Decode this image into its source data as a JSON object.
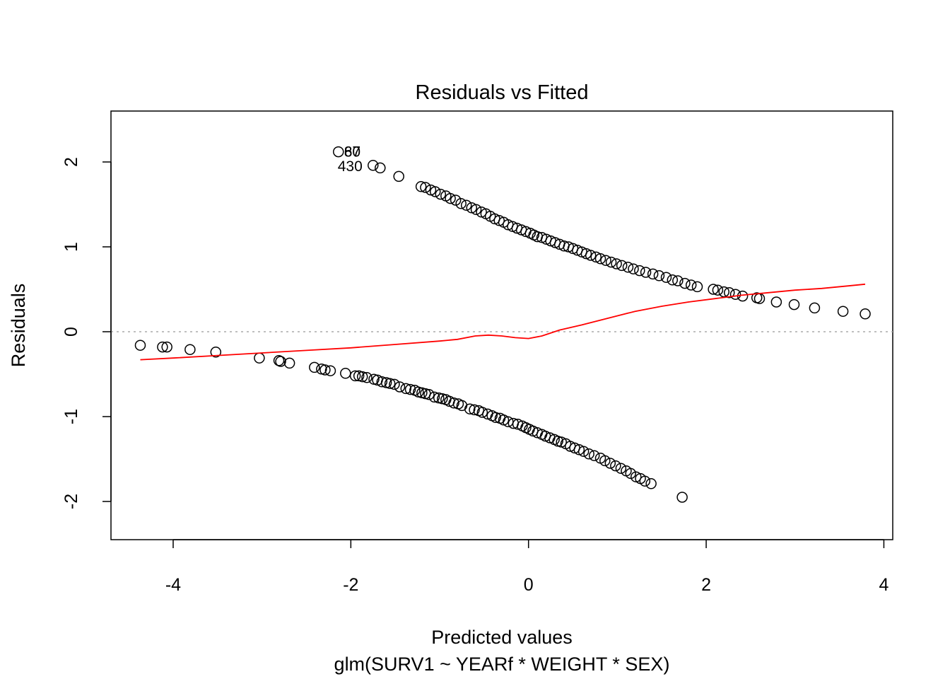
{
  "chart_data": {
    "type": "scatter",
    "title": "Residuals vs Fitted",
    "xlabel": "Predicted values",
    "subtitle": "glm(SURV1 ~ YEARf * WEIGHT * SEX)",
    "ylabel": "Residuals",
    "xlim": [
      -4.7,
      4.1
    ],
    "ylim": [
      -2.45,
      2.6
    ],
    "x_ticks": [
      -4,
      -2,
      0,
      2,
      4
    ],
    "x_tick_labels": [
      "-4",
      "-2",
      "0",
      "2",
      "4"
    ],
    "y_ticks": [
      -2,
      -1,
      0,
      1,
      2
    ],
    "y_tick_labels": [
      "-2",
      "-1",
      "0",
      "1",
      "2"
    ],
    "reference_line_y": 0,
    "grid": false,
    "colors": {
      "points": "#000000",
      "smoother": "#ff0000",
      "reference": "#aaaaaa"
    },
    "point_labels": [
      {
        "text": "87",
        "x": -2.14,
        "y": 2.12
      },
      {
        "text": "60",
        "x": -2.14,
        "y": 2.12
      },
      {
        "text": "430",
        "x": -1.75,
        "y": 1.96
      }
    ],
    "series": [
      {
        "name": "",
        "points": [
          [
            -4.37,
            -0.16
          ],
          [
            -4.12,
            -0.18
          ],
          [
            -4.07,
            -0.18
          ],
          [
            -3.81,
            -0.21
          ],
          [
            -3.52,
            -0.24
          ],
          [
            -3.03,
            -0.31
          ],
          [
            -2.81,
            -0.34
          ],
          [
            -2.79,
            -0.35
          ],
          [
            -2.69,
            -0.37
          ],
          [
            -2.41,
            -0.42
          ],
          [
            -2.33,
            -0.44
          ],
          [
            -2.29,
            -0.45
          ],
          [
            -2.23,
            -0.46
          ],
          [
            -2.06,
            -0.49
          ],
          [
            -1.95,
            -0.52
          ],
          [
            -1.91,
            -0.52
          ],
          [
            -1.87,
            -0.53
          ],
          [
            -1.82,
            -0.54
          ],
          [
            -1.74,
            -0.56
          ],
          [
            -1.7,
            -0.57
          ],
          [
            -1.65,
            -0.59
          ],
          [
            -1.6,
            -0.6
          ],
          [
            -1.56,
            -0.61
          ],
          [
            -1.51,
            -0.62
          ],
          [
            -1.45,
            -0.65
          ],
          [
            -1.38,
            -0.67
          ],
          [
            -1.33,
            -0.68
          ],
          [
            -1.28,
            -0.69
          ],
          [
            -1.24,
            -0.71
          ],
          [
            -1.2,
            -0.72
          ],
          [
            -1.16,
            -0.73
          ],
          [
            -1.12,
            -0.74
          ],
          [
            -1.06,
            -0.77
          ],
          [
            -1.01,
            -0.78
          ],
          [
            -0.97,
            -0.79
          ],
          [
            -0.93,
            -0.8
          ],
          [
            -0.89,
            -0.82
          ],
          [
            -0.84,
            -0.84
          ],
          [
            -0.79,
            -0.85
          ],
          [
            -0.75,
            -0.87
          ],
          [
            -0.66,
            -0.91
          ],
          [
            -0.61,
            -0.92
          ],
          [
            -0.56,
            -0.93
          ],
          [
            -0.52,
            -0.95
          ],
          [
            -0.46,
            -0.97
          ],
          [
            -0.41,
            -0.99
          ],
          [
            -0.37,
            -1.01
          ],
          [
            -0.32,
            -1.02
          ],
          [
            -0.28,
            -1.04
          ],
          [
            -0.23,
            -1.06
          ],
          [
            -0.17,
            -1.08
          ],
          [
            -0.12,
            -1.09
          ],
          [
            -0.07,
            -1.11
          ],
          [
            -0.03,
            -1.13
          ],
          [
            0.01,
            -1.15
          ],
          [
            0.05,
            -1.17
          ],
          [
            0.1,
            -1.19
          ],
          [
            0.15,
            -1.21
          ],
          [
            0.19,
            -1.23
          ],
          [
            0.24,
            -1.25
          ],
          [
            0.29,
            -1.27
          ],
          [
            0.33,
            -1.29
          ],
          [
            0.37,
            -1.3
          ],
          [
            0.42,
            -1.32
          ],
          [
            0.47,
            -1.35
          ],
          [
            0.52,
            -1.37
          ],
          [
            0.57,
            -1.39
          ],
          [
            0.62,
            -1.41
          ],
          [
            0.68,
            -1.44
          ],
          [
            0.74,
            -1.46
          ],
          [
            0.81,
            -1.49
          ],
          [
            0.86,
            -1.52
          ],
          [
            0.92,
            -1.55
          ],
          [
            0.98,
            -1.58
          ],
          [
            1.04,
            -1.61
          ],
          [
            1.1,
            -1.64
          ],
          [
            1.15,
            -1.67
          ],
          [
            1.21,
            -1.71
          ],
          [
            1.26,
            -1.73
          ],
          [
            1.31,
            -1.76
          ],
          [
            1.38,
            -1.79
          ],
          [
            1.73,
            -1.95
          ],
          [
            -2.14,
            2.12
          ],
          [
            -1.75,
            1.96
          ],
          [
            -1.67,
            1.93
          ],
          [
            -1.46,
            1.83
          ],
          [
            -1.21,
            1.71
          ],
          [
            -1.16,
            1.7
          ],
          [
            -1.1,
            1.67
          ],
          [
            -1.05,
            1.65
          ],
          [
            -0.99,
            1.62
          ],
          [
            -0.93,
            1.6
          ],
          [
            -0.88,
            1.57
          ],
          [
            -0.82,
            1.55
          ],
          [
            -0.76,
            1.51
          ],
          [
            -0.7,
            1.49
          ],
          [
            -0.64,
            1.46
          ],
          [
            -0.59,
            1.44
          ],
          [
            -0.53,
            1.41
          ],
          [
            -0.48,
            1.39
          ],
          [
            -0.43,
            1.36
          ],
          [
            -0.38,
            1.33
          ],
          [
            -0.33,
            1.31
          ],
          [
            -0.28,
            1.29
          ],
          [
            -0.23,
            1.26
          ],
          [
            -0.18,
            1.24
          ],
          [
            -0.13,
            1.22
          ],
          [
            -0.08,
            1.2
          ],
          [
            -0.03,
            1.18
          ],
          [
            0.02,
            1.16
          ],
          [
            0.06,
            1.14
          ],
          [
            0.1,
            1.12
          ],
          [
            0.15,
            1.11
          ],
          [
            0.2,
            1.09
          ],
          [
            0.25,
            1.07
          ],
          [
            0.3,
            1.05
          ],
          [
            0.35,
            1.03
          ],
          [
            0.4,
            1.01
          ],
          [
            0.45,
            1.0
          ],
          [
            0.5,
            0.98
          ],
          [
            0.55,
            0.96
          ],
          [
            0.6,
            0.94
          ],
          [
            0.65,
            0.92
          ],
          [
            0.7,
            0.9
          ],
          [
            0.76,
            0.88
          ],
          [
            0.81,
            0.86
          ],
          [
            0.87,
            0.84
          ],
          [
            0.93,
            0.82
          ],
          [
            0.99,
            0.8
          ],
          [
            1.05,
            0.78
          ],
          [
            1.12,
            0.76
          ],
          [
            1.18,
            0.74
          ],
          [
            1.25,
            0.72
          ],
          [
            1.32,
            0.7
          ],
          [
            1.4,
            0.68
          ],
          [
            1.47,
            0.66
          ],
          [
            1.55,
            0.64
          ],
          [
            1.62,
            0.61
          ],
          [
            1.68,
            0.6
          ],
          [
            1.76,
            0.57
          ],
          [
            1.83,
            0.55
          ],
          [
            1.9,
            0.53
          ],
          [
            2.08,
            0.5
          ],
          [
            2.13,
            0.49
          ],
          [
            2.2,
            0.47
          ],
          [
            2.26,
            0.46
          ],
          [
            2.33,
            0.44
          ],
          [
            2.41,
            0.42
          ],
          [
            2.57,
            0.4
          ],
          [
            2.6,
            0.39
          ],
          [
            2.79,
            0.35
          ],
          [
            2.99,
            0.32
          ],
          [
            3.22,
            0.28
          ],
          [
            3.54,
            0.24
          ],
          [
            3.79,
            0.21
          ]
        ]
      }
    ],
    "smoother": {
      "x": [
        -4.37,
        -4.0,
        -3.5,
        -3.0,
        -2.5,
        -2.0,
        -1.5,
        -1.0,
        -0.8,
        -0.6,
        -0.45,
        -0.3,
        -0.15,
        0.0,
        0.15,
        0.35,
        0.6,
        0.9,
        1.2,
        1.5,
        1.8,
        2.1,
        2.4,
        2.7,
        3.0,
        3.3,
        3.6,
        3.79
      ],
      "y": [
        -0.33,
        -0.31,
        -0.28,
        -0.25,
        -0.22,
        -0.19,
        -0.15,
        -0.11,
        -0.09,
        -0.05,
        -0.04,
        -0.05,
        -0.07,
        -0.08,
        -0.05,
        0.02,
        0.08,
        0.16,
        0.24,
        0.3,
        0.35,
        0.39,
        0.43,
        0.46,
        0.49,
        0.51,
        0.54,
        0.56
      ]
    }
  }
}
